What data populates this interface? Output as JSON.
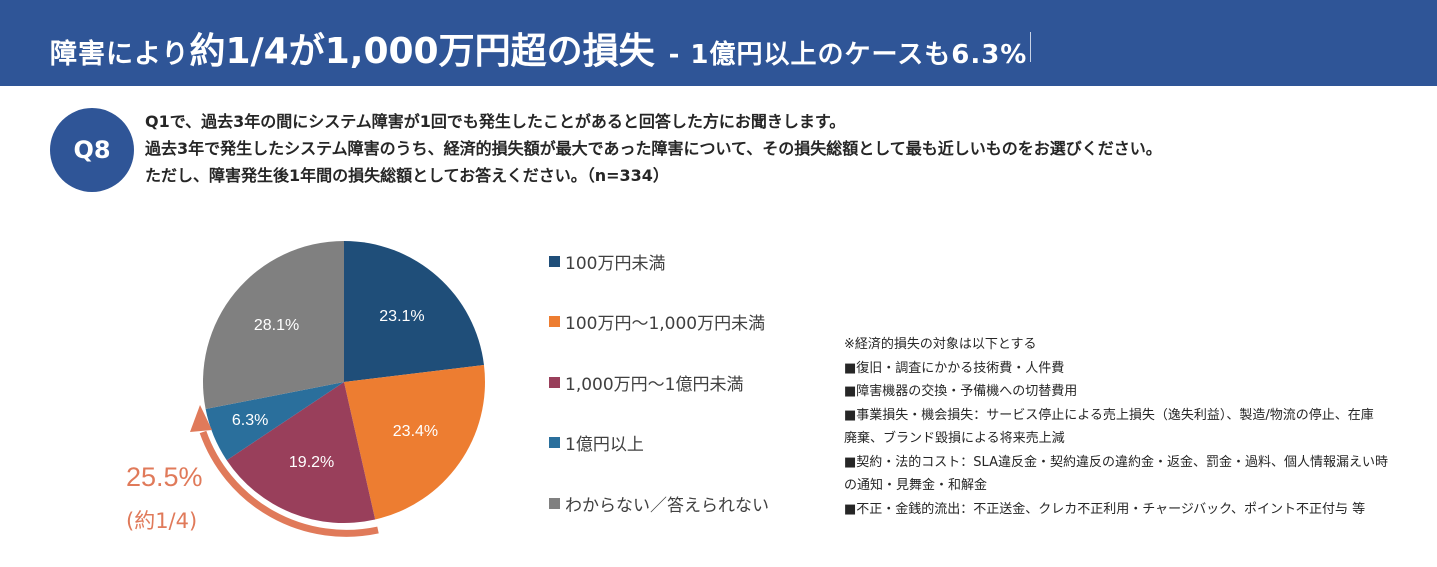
{
  "header": {
    "title_part1": "障害により",
    "title_part2": "約1/4が1,000万円超の損失",
    "title_sub": "- 1億円以上のケースも6.3%",
    "background": "#2f5597"
  },
  "question": {
    "badge": "Q8",
    "lines": [
      "Q1で、過去3年の間にシステム障害が1回でも発生したことがあると回答した方にお聞きします。",
      "過去3年で発生したシステム障害のうち、経済的損失額が最大であった障害について、その損失総額として最も近しいものをお選びください。",
      "ただし、障害発生後1年間の損失総額としてお答えください。（n=334）"
    ]
  },
  "chart_data": {
    "type": "pie",
    "title": "障害により約1/4が1,000万円超の損失 - 1億円以上のケースも6.3%",
    "n": 334,
    "categories": [
      "100万円未満",
      "100万円～1,000万円未満",
      "1,000万円～1億円未満",
      "1億円以上",
      "わからない／答えられない"
    ],
    "values": [
      23.1,
      23.4,
      19.2,
      6.3,
      28.1
    ],
    "labels": [
      "23.1%",
      "23.4%",
      "19.2%",
      "6.3%",
      "28.1%"
    ],
    "colors": [
      "#1f4e79",
      "#ed7d31",
      "#993f5b",
      "#2a6f9c",
      "#808080"
    ],
    "start_angle": "12 o'clock, clockwise",
    "legend_position": "right",
    "annotation": {
      "value": "25.5%",
      "sub": "(約1/4)",
      "color": "#e07a5a",
      "covers": [
        "1,000万円～1億円未満",
        "1億円以上"
      ]
    }
  },
  "legend": [
    {
      "label": "100万円未満",
      "color": "#1f4e79"
    },
    {
      "label": "100万円～1,000万円未満",
      "color": "#ed7d31"
    },
    {
      "label": "1,000万円～1億円未満",
      "color": "#993f5b"
    },
    {
      "label": "1億円以上",
      "color": "#2a6f9c"
    },
    {
      "label": "わからない／答えられない",
      "color": "#808080"
    }
  ],
  "notes": {
    "heading": "※経済的損失の対象は以下とする",
    "items": [
      "■復旧・調査にかかる技術費・人件費",
      "■障害機器の交換・予備機への切替費用",
      "■事業損失・機会損失：サービス停止による売上損失（逸失利益）、製造/物流の停止、在庫",
      "廃棄、ブランド毀損による将来売上減",
      "■契約・法的コスト：SLA違反金・契約違反の違約金・返金、罰金・過料、個人情報漏えい時",
      "の通知・見舞金・和解金",
      "■不正・金銭的流出：不正送金、クレカ不正利用・チャージバック、ポイント不正付与 等"
    ]
  }
}
